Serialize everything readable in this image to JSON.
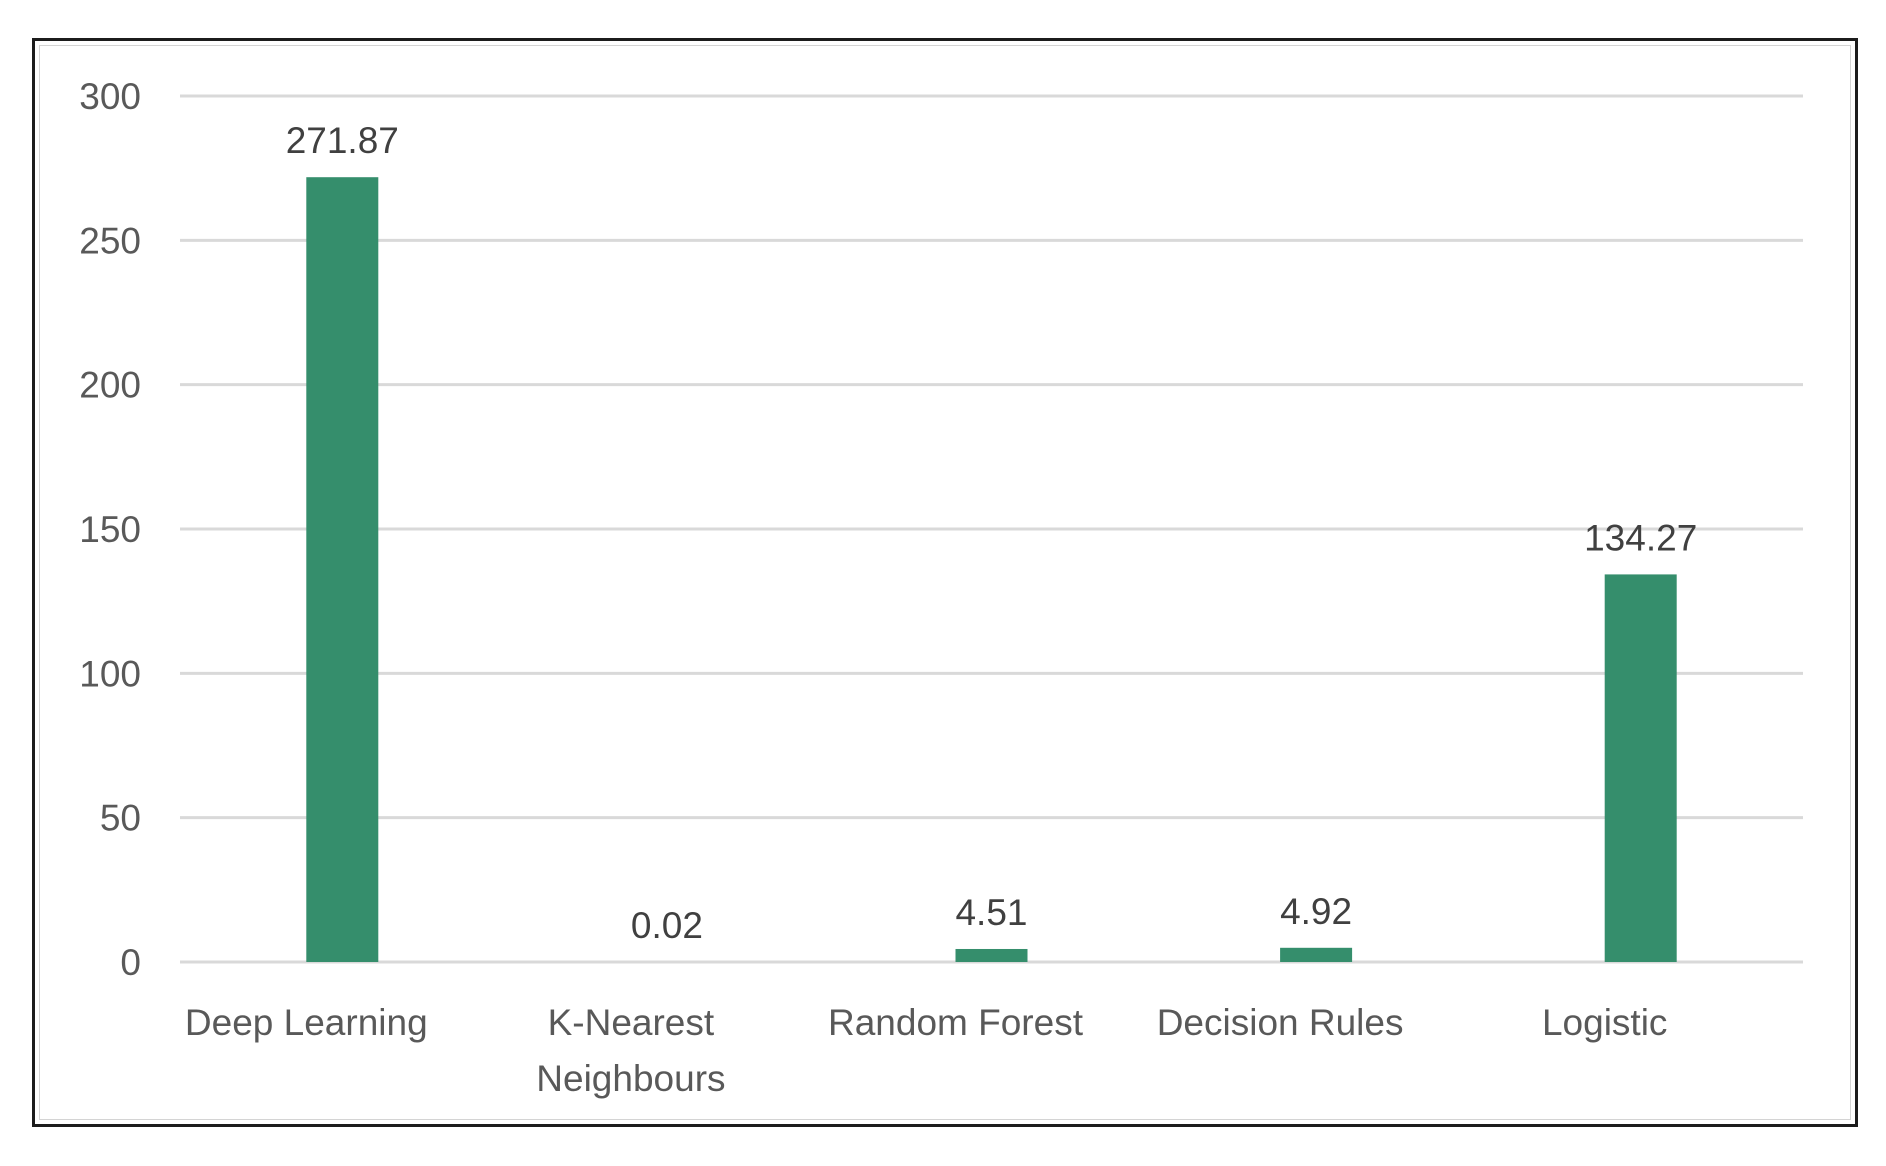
{
  "chart_data": {
    "type": "bar",
    "title": "",
    "xlabel": "",
    "ylabel": "",
    "categories": [
      [
        "Deep Learning"
      ],
      [
        "K-Nearest",
        "Neighbours"
      ],
      [
        "Random Forest"
      ],
      [
        "Decision Rules"
      ],
      [
        "Logistic"
      ]
    ],
    "values": [
      271.87,
      0.02,
      4.51,
      4.92,
      134.27
    ],
    "data_labels": [
      "271.87",
      "0.02",
      "4.51",
      "4.92",
      "134.27"
    ],
    "ylim": [
      0,
      300
    ],
    "yticks": [
      0,
      50,
      100,
      150,
      200,
      250,
      300
    ],
    "grid": true,
    "legend": "none",
    "bar_color": "#358e6c"
  }
}
